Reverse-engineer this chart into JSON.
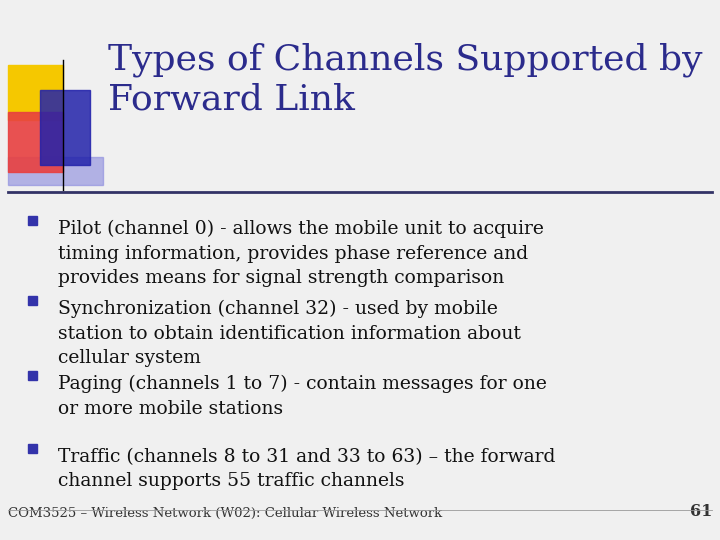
{
  "title_line1": "Types of Channels Supported by",
  "title_line2": "Forward Link",
  "title_color": "#2B2B8C",
  "background_color": "#F0F0F0",
  "bullet_color": "#3333AA",
  "text_color": "#111111",
  "bullets": [
    "Pilot (channel 0) - allows the mobile unit to acquire\ntiming information, provides phase reference and\nprovides means for signal strength comparison",
    "Synchronization (channel 32) - used by mobile\nstation to obtain identification information about\ncellular system",
    "Paging (channels 1 to 7) - contain messages for one\nor more mobile stations",
    "Traffic (channels 8 to 31 and 33 to 63) – the forward\nchannel supports 55 traffic channels"
  ],
  "footer": "COM3525 – Wireless Network (W02): Cellular Wireless Network",
  "footer_color": "#333333",
  "page_number": "61",
  "decorator_colors": {
    "yellow": "#F5C800",
    "red_pink": "#E84040",
    "blue_dark": "#2222AA",
    "blue_medium": "#4444CC",
    "blue_light": "#8888DD"
  },
  "separator_color": "#333366",
  "title_font_size": 26,
  "bullet_font_size": 13.5,
  "footer_font_size": 9.5
}
